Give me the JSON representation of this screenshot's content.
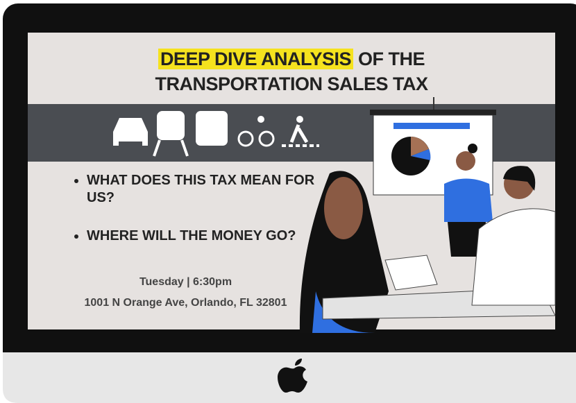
{
  "header": {
    "title_highlight": "DEEP DIVE ANALYSIS",
    "title_rest": "OF THE",
    "title_line2": "TRANSPORTATION SALES TAX"
  },
  "bullets": [
    "WHAT DOES THIS TAX MEAN FOR US?",
    "WHERE WILL THE MONEY GO?"
  ],
  "event": {
    "time": "Tuesday | 6:30pm",
    "address": "1001 N Orange Ave, Orlando, FL 32801"
  }
}
